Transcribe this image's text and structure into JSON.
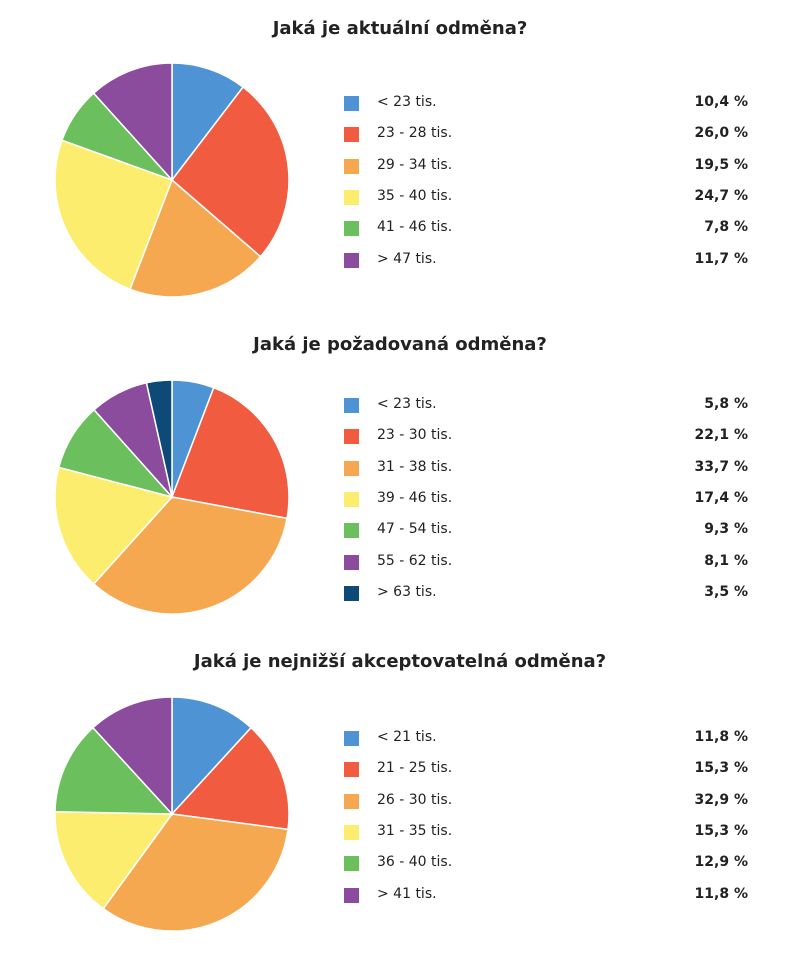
{
  "chart_data": [
    {
      "type": "pie",
      "title": "Jaká je aktuální odměna?",
      "categories": [
        "< 23 tis.",
        "23 - 28 tis.",
        "29 - 34 tis.",
        "35 - 40 tis.",
        "41 - 46 tis.",
        "> 47 tis."
      ],
      "values": [
        10.4,
        26.0,
        19.5,
        24.7,
        7.8,
        11.7
      ],
      "value_labels": [
        "10,4 %",
        "26,0 %",
        "19,5 %",
        "24,7 %",
        "7,8 %",
        "11,7 %"
      ],
      "colors": [
        "#4e93d3",
        "#f15b3f",
        "#f5a84f",
        "#fded6f",
        "#6bbf5c",
        "#8b4c9e"
      ]
    },
    {
      "type": "pie",
      "title": "Jaká je požadovaná odměna?",
      "categories": [
        "< 23 tis.",
        "23 - 30 tis.",
        "31 - 38 tis.",
        "39 - 46 tis.",
        "47 - 54 tis.",
        "55 - 62 tis.",
        "> 63 tis."
      ],
      "values": [
        5.8,
        22.1,
        33.7,
        17.4,
        9.3,
        8.1,
        3.5
      ],
      "value_labels": [
        "5,8 %",
        "22,1 %",
        "33,7 %",
        "17,4 %",
        "9,3 %",
        "8,1 %",
        "3,5 %"
      ],
      "colors": [
        "#4e93d3",
        "#f15b3f",
        "#f5a84f",
        "#fded6f",
        "#6bbf5c",
        "#8b4c9e",
        "#0d4a78"
      ]
    },
    {
      "type": "pie",
      "title": "Jaká je nejnižší akceptovatelná odměna?",
      "categories": [
        "< 21 tis.",
        "21 - 25 tis.",
        "26 - 30 tis.",
        "31 - 35 tis.",
        "36 - 40 tis.",
        "> 41 tis."
      ],
      "values": [
        11.8,
        15.3,
        32.9,
        15.3,
        12.9,
        11.8
      ],
      "value_labels": [
        "11,8 %",
        "15,3 %",
        "32,9 %",
        "15,3 %",
        "12,9 %",
        "11,8 %"
      ],
      "colors": [
        "#4e93d3",
        "#f15b3f",
        "#f5a84f",
        "#fded6f",
        "#6bbf5c",
        "#8b4c9e"
      ]
    }
  ]
}
